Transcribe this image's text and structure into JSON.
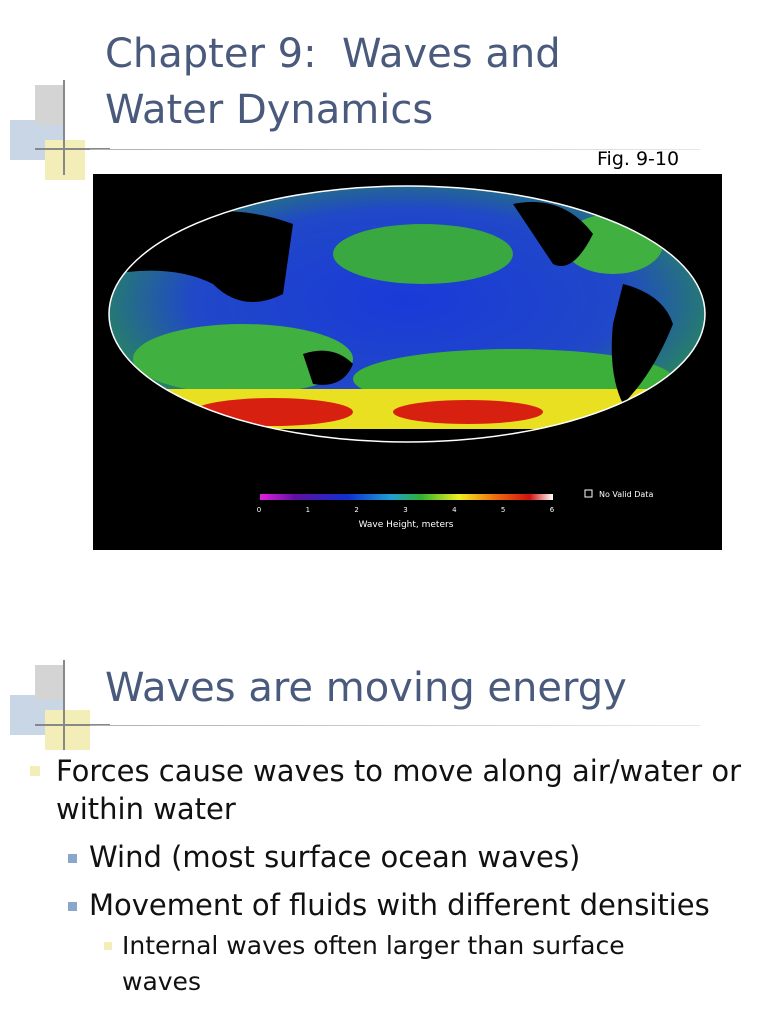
{
  "slides": [
    {
      "title": "Chapter 9:  Waves and Water Dynamics",
      "figure": {
        "caption": "Fig. 9-10",
        "legend": {
          "ticks": [
            0,
            1,
            2,
            3,
            4,
            5,
            6
          ],
          "label": "Wave Height, meters",
          "no_data": "No Valid Data"
        }
      }
    },
    {
      "title": "Waves are moving energy",
      "bullets": [
        {
          "text": "Forces cause waves to move along air/water or within water"
        },
        {
          "text": "Wind (most surface ocean waves)"
        },
        {
          "text": "Movement of fluids with different densities"
        },
        {
          "text": "Internal waves often larger than surface waves"
        }
      ]
    }
  ]
}
